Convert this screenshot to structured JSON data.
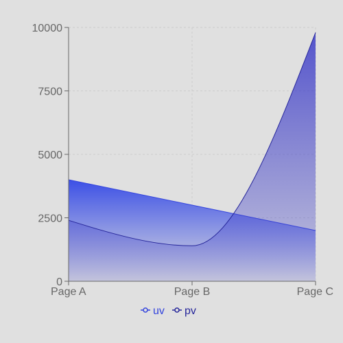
{
  "chart_data": {
    "type": "area",
    "categories": [
      "Page A",
      "Page B",
      "Page C"
    ],
    "series": [
      {
        "name": "uv",
        "values": [
          4000,
          3000,
          2000
        ],
        "color": "#3344dd"
      },
      {
        "name": "pv",
        "values": [
          2400,
          1398,
          9800
        ],
        "color": "#26269a"
      }
    ],
    "ylim": [
      0,
      10000
    ],
    "yticks": [
      0,
      2500,
      5000,
      7500,
      10000
    ],
    "grid": true,
    "legend": "bottom-center",
    "gradient_colors": {
      "uv_top": "#3c50e6",
      "pv_top": "#3c3cc8",
      "bottom": "#e0e0e0"
    },
    "axis_color": "#666666",
    "grid_color": "#cccccc"
  }
}
